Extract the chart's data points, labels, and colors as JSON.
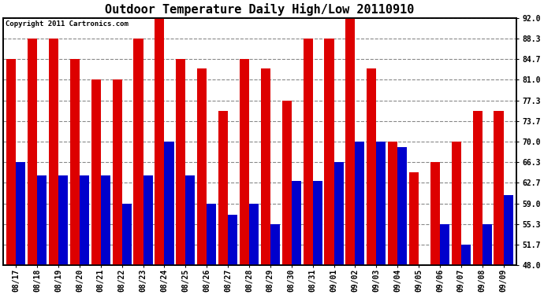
{
  "title": "Outdoor Temperature Daily High/Low 20110910",
  "copyright": "Copyright 2011 Cartronics.com",
  "dates": [
    "08/17",
    "08/18",
    "08/19",
    "08/20",
    "08/21",
    "08/22",
    "08/23",
    "08/24",
    "08/25",
    "08/26",
    "08/27",
    "08/28",
    "08/29",
    "08/30",
    "08/31",
    "09/01",
    "09/02",
    "09/03",
    "09/04",
    "09/05",
    "09/06",
    "09/07",
    "09/08",
    "09/09"
  ],
  "highs": [
    84.7,
    88.3,
    88.3,
    84.7,
    81.0,
    81.0,
    88.3,
    92.0,
    84.7,
    83.0,
    75.5,
    84.7,
    83.0,
    77.3,
    88.3,
    88.3,
    92.0,
    83.0,
    70.0,
    64.5,
    66.3,
    70.0,
    75.5,
    75.5
  ],
  "lows": [
    66.3,
    64.0,
    64.0,
    64.0,
    64.0,
    59.0,
    64.0,
    70.0,
    64.0,
    59.0,
    57.0,
    59.0,
    55.3,
    63.0,
    63.0,
    66.3,
    70.0,
    70.0,
    69.0,
    48.0,
    55.3,
    51.7,
    55.3,
    60.5
  ],
  "high_color": "#dd0000",
  "low_color": "#0000cc",
  "bg_color": "#ffffff",
  "plot_bg_color": "#ffffff",
  "grid_color": "#888888",
  "ylabel_right": [
    "48.0",
    "51.7",
    "55.3",
    "59.0",
    "62.7",
    "66.3",
    "70.0",
    "73.7",
    "77.3",
    "81.0",
    "84.7",
    "88.3",
    "92.0"
  ],
  "yticks": [
    48.0,
    51.7,
    55.3,
    59.0,
    62.7,
    66.3,
    70.0,
    73.7,
    77.3,
    81.0,
    84.7,
    88.3,
    92.0
  ],
  "ymin": 48.0,
  "ymax": 92.0,
  "bar_width": 0.45,
  "title_fontsize": 11,
  "tick_fontsize": 7,
  "copyright_fontsize": 6.5
}
